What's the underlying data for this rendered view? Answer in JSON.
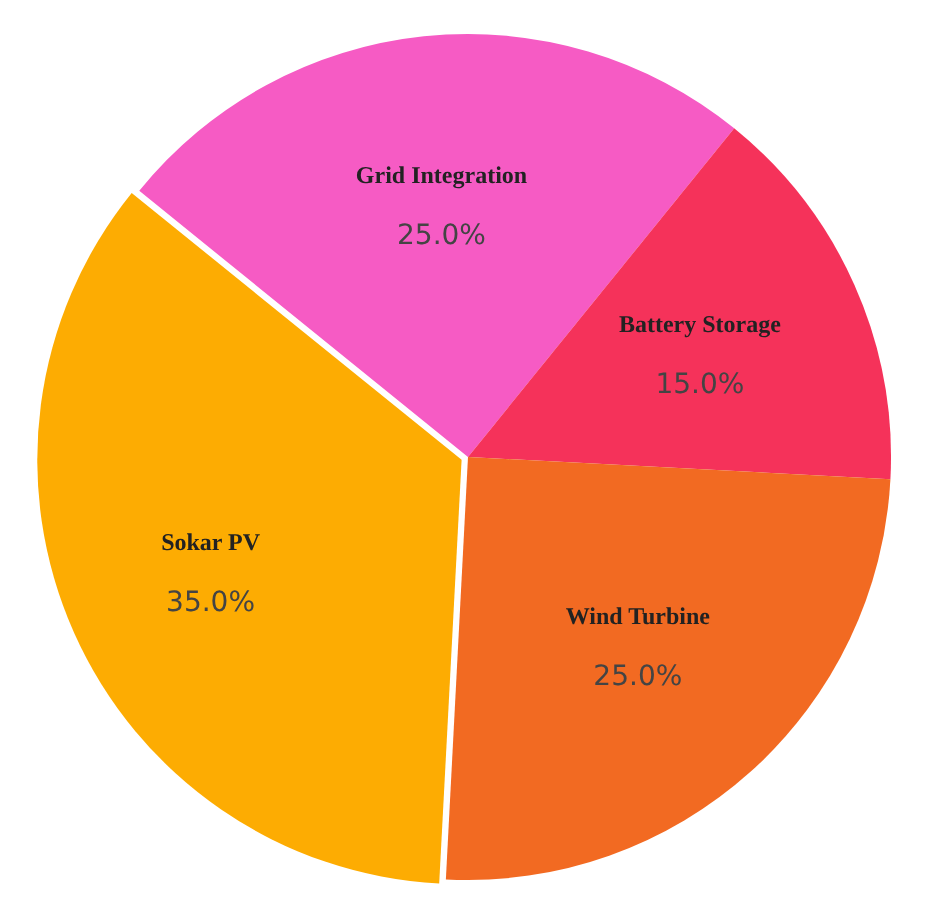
{
  "chart_data": {
    "type": "pie",
    "categories": [
      "Grid Integration",
      "Battery Storage",
      "Wind Turbine",
      "Sokar PV"
    ],
    "values": [
      25,
      15,
      25,
      35
    ],
    "colors": [
      "#f65bc4",
      "#f5325a",
      "#f26a22",
      "#fdac02"
    ],
    "value_labels": [
      "25.0%",
      "15.0%",
      "25.0%",
      "35.0%"
    ]
  }
}
